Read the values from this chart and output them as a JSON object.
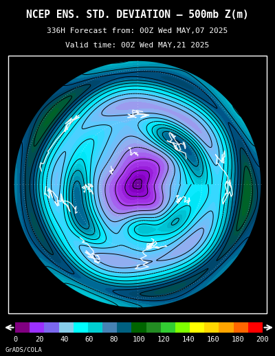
{
  "title_line1": "NCEP ENS. STD. DEVIATION – 500mb Z(m)",
  "title_line2": "336H Forecast from: 00Z Wed MAY,07 2025",
  "title_line3": "Valid time: 00Z Wed MAY,21 2025",
  "credit": "GrADS/COLA",
  "colorbar_values": [
    0,
    20,
    40,
    60,
    80,
    100,
    120,
    140,
    160,
    180,
    200
  ],
  "bar_colors": [
    "#800080",
    "#9B30FF",
    "#7B68EE",
    "#87CEEB",
    "#00FFFF",
    "#00CED1",
    "#4682B4",
    "#006080",
    "#006400",
    "#228B22",
    "#32CD32",
    "#7FFF00",
    "#FFFF00",
    "#FFD700",
    "#FFA500",
    "#FF6600",
    "#FF0000"
  ],
  "map_colors": [
    "#7B0099",
    "#8B00CC",
    "#9900FF",
    "#7777DD",
    "#6699EE",
    "#55BBFF",
    "#00DDFF",
    "#00CCCC",
    "#0099AA",
    "#007799",
    "#005588",
    "#004477",
    "#003366",
    "#004455",
    "#005544",
    "#006644",
    "#007744",
    "#228B22",
    "#32CD32",
    "#7FFF00",
    "#FFFF00",
    "#FFD700",
    "#FFA500",
    "#FF6600",
    "#FF0000"
  ],
  "bg_color": "#000000",
  "text_color": "#ffffff",
  "figsize": [
    4.0,
    5.18
  ],
  "dpi": 100,
  "seed_data": 77,
  "seed_coast": 999
}
